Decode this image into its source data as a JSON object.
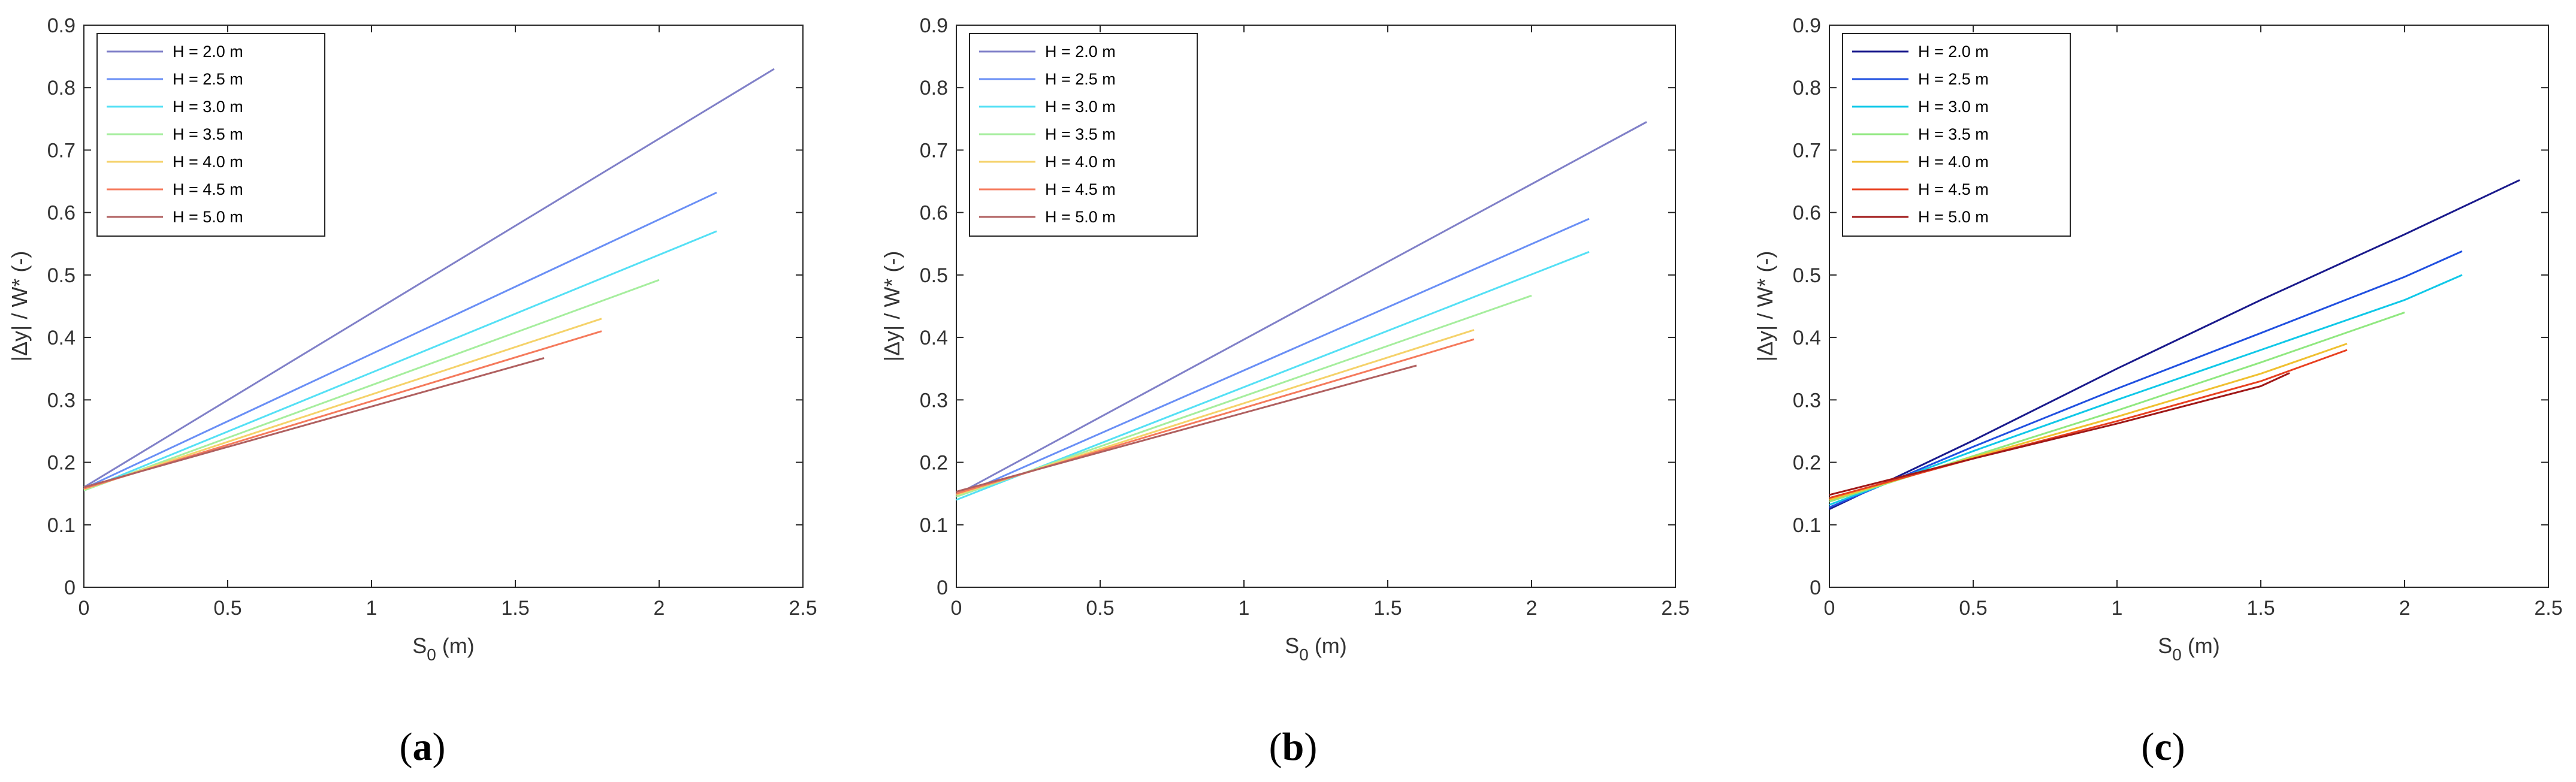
{
  "figure": {
    "panels": [
      {
        "caption_open": "(",
        "caption_letter": "a",
        "caption_close": ")"
      },
      {
        "caption_open": "(",
        "caption_letter": "b",
        "caption_close": ")"
      },
      {
        "caption_open": "(",
        "caption_letter": "c",
        "caption_close": ")"
      }
    ]
  },
  "chart_data": [
    {
      "type": "line",
      "xlabel": "S0 (m)",
      "ylabel": "|Δy| / W* (-)",
      "xlim": [
        0,
        2.5
      ],
      "ylim": [
        0,
        0.9
      ],
      "xticks": [
        "0",
        "0.5",
        "1",
        "1.5",
        "2",
        "2.5"
      ],
      "yticks": [
        "0",
        "0.1",
        "0.2",
        "0.3",
        "0.4",
        "0.5",
        "0.6",
        "0.7",
        "0.8",
        "0.9"
      ],
      "grid": false,
      "legend_position": "top-left",
      "series": [
        {
          "name": "H = 2.0 m",
          "color": "#8080c8",
          "x": [
            0,
            2.4
          ],
          "y": [
            0.16,
            0.83
          ]
        },
        {
          "name": "H = 2.5 m",
          "color": "#6a8ff5",
          "x": [
            0,
            2.2
          ],
          "y": [
            0.158,
            0.632
          ]
        },
        {
          "name": "H = 3.0 m",
          "color": "#55e0f5",
          "x": [
            0,
            2.2
          ],
          "y": [
            0.155,
            0.57
          ]
        },
        {
          "name": "H = 3.5 m",
          "color": "#a6ee9e",
          "x": [
            0,
            2.0
          ],
          "y": [
            0.155,
            0.492
          ]
        },
        {
          "name": "H = 4.0 m",
          "color": "#f5d26a",
          "x": [
            0,
            1.8
          ],
          "y": [
            0.157,
            0.43
          ]
        },
        {
          "name": "H = 4.5 m",
          "color": "#f57a5c",
          "x": [
            0,
            1.8
          ],
          "y": [
            0.158,
            0.41
          ]
        },
        {
          "name": "H = 5.0 m",
          "color": "#b06060",
          "x": [
            0,
            1.6
          ],
          "y": [
            0.16,
            0.367
          ]
        }
      ]
    },
    {
      "type": "line",
      "xlabel": "S0 (m)",
      "ylabel": "|Δy| / W* (-)",
      "xlim": [
        0,
        2.5
      ],
      "ylim": [
        0,
        0.9
      ],
      "xticks": [
        "0",
        "0.5",
        "1",
        "1.5",
        "2",
        "2.5"
      ],
      "yticks": [
        "0",
        "0.1",
        "0.2",
        "0.3",
        "0.4",
        "0.5",
        "0.6",
        "0.7",
        "0.8",
        "0.9"
      ],
      "grid": false,
      "legend_position": "top-left",
      "series": [
        {
          "name": "H = 2.0 m",
          "color": "#8080c8",
          "x": [
            0,
            2.4
          ],
          "y": [
            0.148,
            0.745
          ]
        },
        {
          "name": "H = 2.5 m",
          "color": "#6a8ff5",
          "x": [
            0,
            2.2
          ],
          "y": [
            0.145,
            0.59
          ]
        },
        {
          "name": "H = 3.0 m",
          "color": "#55e0f5",
          "x": [
            0,
            2.2
          ],
          "y": [
            0.14,
            0.537
          ]
        },
        {
          "name": "H = 3.5 m",
          "color": "#a6ee9e",
          "x": [
            0,
            2.0
          ],
          "y": [
            0.145,
            0.467
          ]
        },
        {
          "name": "H = 4.0 m",
          "color": "#f5d26a",
          "x": [
            0,
            1.8
          ],
          "y": [
            0.148,
            0.412
          ]
        },
        {
          "name": "H = 4.5 m",
          "color": "#f57a5c",
          "x": [
            0,
            1.8
          ],
          "y": [
            0.15,
            0.397
          ]
        },
        {
          "name": "H = 5.0 m",
          "color": "#b06060",
          "x": [
            0,
            1.6
          ],
          "y": [
            0.153,
            0.355
          ]
        }
      ]
    },
    {
      "type": "line",
      "xlabel": "S0 (m)",
      "ylabel": "|Δy| / W* (-)",
      "xlim": [
        0,
        2.5
      ],
      "ylim": [
        0,
        0.9
      ],
      "xticks": [
        "0",
        "0.5",
        "1",
        "1.5",
        "2",
        "2.5"
      ],
      "yticks": [
        "0",
        "0.1",
        "0.2",
        "0.3",
        "0.4",
        "0.5",
        "0.6",
        "0.7",
        "0.8",
        "0.9"
      ],
      "grid": false,
      "legend_position": "top-left",
      "series": [
        {
          "name": "H = 2.0 m",
          "color": "#1a1a8c",
          "x": [
            0,
            0.5,
            1.0,
            1.5,
            2.0,
            2.4
          ],
          "y": [
            0.125,
            0.235,
            0.35,
            0.46,
            0.565,
            0.652
          ]
        },
        {
          "name": "H = 2.5 m",
          "color": "#2050e0",
          "x": [
            0,
            0.5,
            1.0,
            1.5,
            2.0,
            2.2
          ],
          "y": [
            0.128,
            0.225,
            0.318,
            0.407,
            0.497,
            0.538
          ]
        },
        {
          "name": "H = 3.0 m",
          "color": "#10c8e8",
          "x": [
            0,
            0.5,
            1.0,
            1.5,
            2.0,
            2.2
          ],
          "y": [
            0.132,
            0.218,
            0.3,
            0.38,
            0.46,
            0.5
          ]
        },
        {
          "name": "H = 3.5 m",
          "color": "#90e880",
          "x": [
            0,
            0.5,
            1.0,
            1.5,
            2.0
          ],
          "y": [
            0.137,
            0.21,
            0.283,
            0.36,
            0.44
          ]
        },
        {
          "name": "H = 4.0 m",
          "color": "#f0c030",
          "x": [
            0,
            0.5,
            1.0,
            1.5,
            1.8
          ],
          "y": [
            0.14,
            0.208,
            0.273,
            0.342,
            0.39
          ]
        },
        {
          "name": "H = 4.5 m",
          "color": "#e84020",
          "x": [
            0,
            0.5,
            1.0,
            1.5,
            1.8
          ],
          "y": [
            0.143,
            0.206,
            0.266,
            0.33,
            0.38
          ]
        },
        {
          "name": "H = 5.0 m",
          "color": "#a01818",
          "x": [
            0,
            0.5,
            1.0,
            1.5,
            1.6
          ],
          "y": [
            0.148,
            0.206,
            0.262,
            0.322,
            0.343
          ]
        }
      ]
    }
  ]
}
